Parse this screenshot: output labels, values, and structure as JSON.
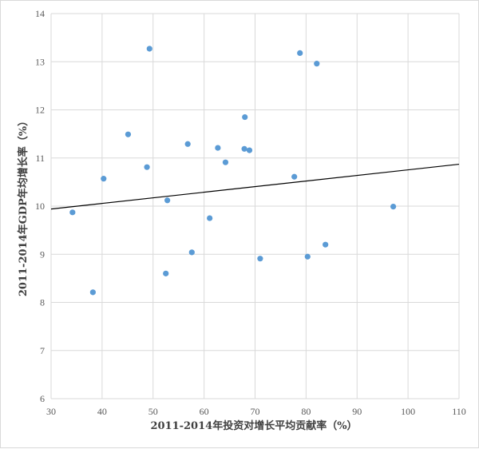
{
  "chart_data": {
    "type": "scatter",
    "xlabel": "2011-2014年投资对增长平均贡献率（%）",
    "ylabel": "2011-2014年GDP年均增长率（%）",
    "xlim": [
      30,
      110
    ],
    "ylim": [
      6,
      14
    ],
    "x_ticks": [
      30,
      40,
      50,
      60,
      70,
      80,
      90,
      100,
      110
    ],
    "y_ticks": [
      6,
      7,
      8,
      9,
      10,
      11,
      12,
      13,
      14
    ],
    "grid": true,
    "point_color": "#5b9bd5",
    "trendline": {
      "x": [
        30,
        110
      ],
      "y": [
        9.94,
        10.87
      ],
      "color": "#000000"
    },
    "points": [
      {
        "x": 34.2,
        "y": 9.87
      },
      {
        "x": 38.2,
        "y": 8.21
      },
      {
        "x": 40.3,
        "y": 10.57
      },
      {
        "x": 45.1,
        "y": 11.49
      },
      {
        "x": 48.8,
        "y": 10.81
      },
      {
        "x": 49.3,
        "y": 13.27
      },
      {
        "x": 52.5,
        "y": 8.6
      },
      {
        "x": 52.8,
        "y": 10.12
      },
      {
        "x": 56.8,
        "y": 11.29
      },
      {
        "x": 57.6,
        "y": 9.04
      },
      {
        "x": 61.1,
        "y": 9.75
      },
      {
        "x": 62.7,
        "y": 11.21
      },
      {
        "x": 64.2,
        "y": 10.91
      },
      {
        "x": 67.9,
        "y": 11.19
      },
      {
        "x": 68.0,
        "y": 11.85
      },
      {
        "x": 68.9,
        "y": 11.16
      },
      {
        "x": 71.0,
        "y": 8.91
      },
      {
        "x": 77.7,
        "y": 10.61
      },
      {
        "x": 78.8,
        "y": 13.18
      },
      {
        "x": 80.3,
        "y": 8.95
      },
      {
        "x": 82.1,
        "y": 12.96
      },
      {
        "x": 83.8,
        "y": 9.2
      },
      {
        "x": 97.1,
        "y": 9.99
      }
    ]
  }
}
